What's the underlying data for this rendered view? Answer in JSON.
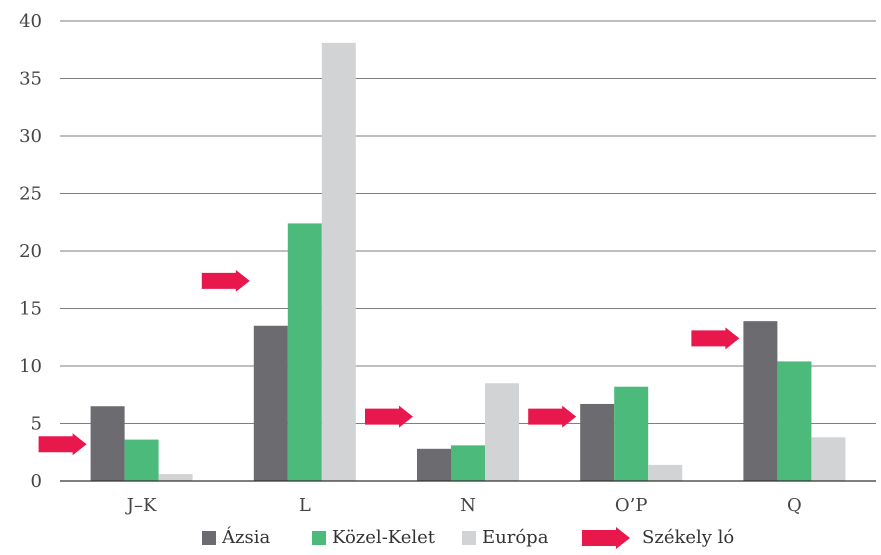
{
  "chart_data": {
    "type": "bar",
    "categories": [
      "J–K",
      "L",
      "N",
      "O’P",
      "Q"
    ],
    "series": [
      {
        "name": "Ázsia",
        "color": "#6b6b70",
        "values": [
          6.5,
          13.5,
          2.8,
          6.7,
          13.9
        ]
      },
      {
        "name": "Közel-Kelet",
        "color": "#4cba7a",
        "values": [
          3.6,
          22.4,
          3.1,
          8.2,
          10.4
        ]
      },
      {
        "name": "Európa",
        "color": "#d2d3d5",
        "values": [
          0.6,
          38.1,
          8.5,
          1.4,
          3.8
        ]
      }
    ],
    "marker": {
      "name": "Székely ló",
      "color": "#e8184d",
      "icon": "arrow-right-icon",
      "values": [
        3.2,
        17.4,
        5.6,
        5.6,
        12.4
      ]
    },
    "ylim": [
      0,
      40
    ],
    "yticks": [
      0,
      5,
      10,
      15,
      20,
      25,
      30,
      35,
      40
    ],
    "grid": true,
    "legend_position": "bottom",
    "title": "",
    "xlabel": "",
    "ylabel": ""
  }
}
